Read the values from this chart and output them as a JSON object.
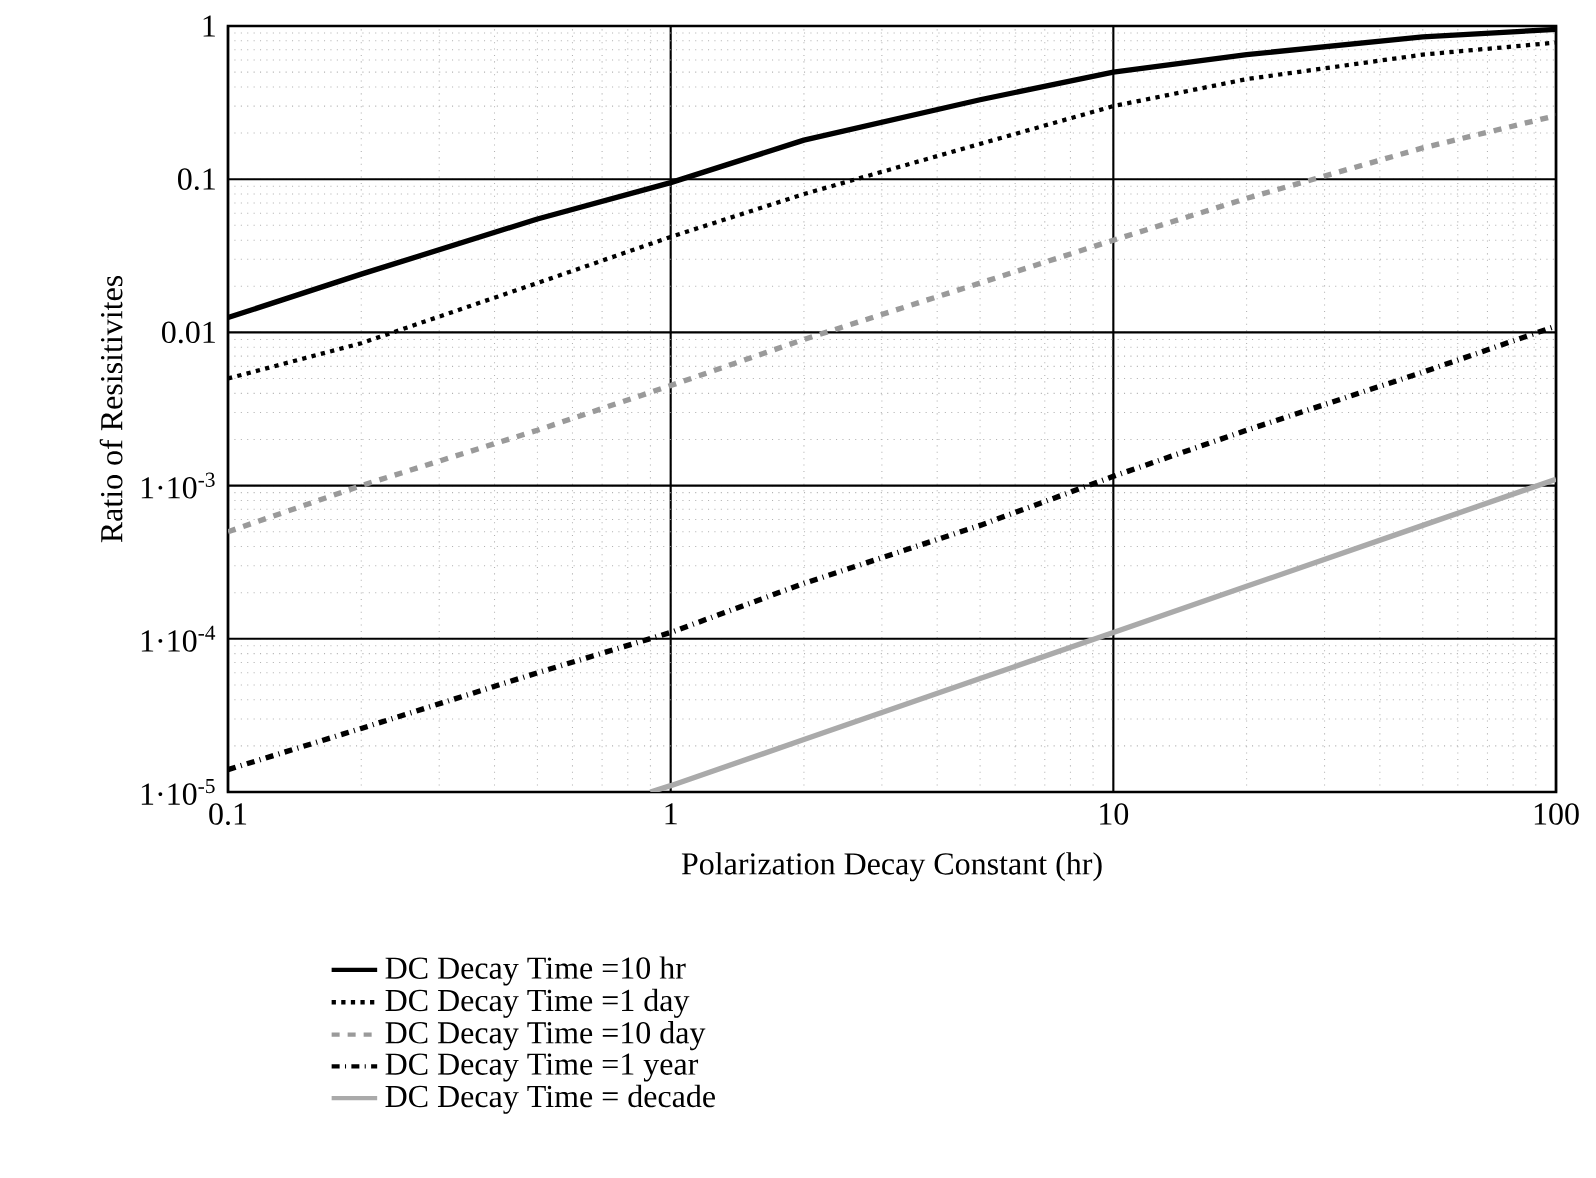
{
  "chart_data": {
    "type": "line",
    "xlabel": "Polarization Decay Constant (hr)",
    "ylabel": "Ratio of Resisitivites",
    "log": "xy",
    "xlim": [
      0.1,
      100
    ],
    "ylim": [
      1e-05,
      1
    ],
    "xticks": [
      0.1,
      1,
      10,
      100
    ],
    "yticks": [
      {
        "value": 1e-05,
        "label": "1·10$^{-5}$"
      },
      {
        "value": 0.0001,
        "label": "1·10$^{-4}$"
      },
      {
        "value": 0.001,
        "label": "1·10$^{-3}$"
      },
      0.01,
      0.1,
      1
    ],
    "grid": true,
    "legend": "bottom",
    "series": [
      {
        "name": "DC Decay Time =10 hr",
        "color": "#000000",
        "line_style": "solid",
        "x": [
          0.1,
          0.2,
          0.5,
          1,
          2,
          5,
          10,
          20,
          50,
          100
        ],
        "values": [
          0.0125,
          0.024,
          0.055,
          0.095,
          0.18,
          0.33,
          0.5,
          0.65,
          0.85,
          0.95
        ]
      },
      {
        "name": "DC Decay Time =1 day",
        "color": "#000000",
        "line_style": "dotted",
        "x": [
          0.1,
          0.2,
          0.5,
          1,
          2,
          5,
          10,
          20,
          50,
          100
        ],
        "values": [
          0.005,
          0.0085,
          0.021,
          0.042,
          0.08,
          0.17,
          0.3,
          0.45,
          0.65,
          0.78
        ]
      },
      {
        "name": "DC Decay Time =10 day",
        "color": "#9a9a9a",
        "line_style": "dashed",
        "x": [
          0.1,
          0.2,
          0.5,
          1,
          2,
          5,
          10,
          20,
          50,
          100
        ],
        "values": [
          0.0005,
          0.001,
          0.0023,
          0.0045,
          0.009,
          0.021,
          0.04,
          0.075,
          0.16,
          0.26
        ]
      },
      {
        "name": "DC Decay Time =1 year",
        "color": "#000000",
        "line_style": "dashdot",
        "x": [
          0.1,
          0.2,
          0.5,
          1,
          2,
          5,
          10,
          20,
          50,
          100
        ],
        "values": [
          1.4e-05,
          2.6e-05,
          6e-05,
          0.00011,
          0.00023,
          0.00055,
          0.00115,
          0.0023,
          0.0055,
          0.011
        ]
      },
      {
        "name": "DC Decay Time = decade",
        "color": "#aaaaaa",
        "line_style": "solid",
        "x": [
          0.9,
          1,
          2,
          5,
          10,
          20,
          50,
          100
        ],
        "values": [
          1e-05,
          1.1e-05,
          2.2e-05,
          5.5e-05,
          0.00011,
          0.00022,
          0.00055,
          0.0011
        ]
      }
    ]
  }
}
